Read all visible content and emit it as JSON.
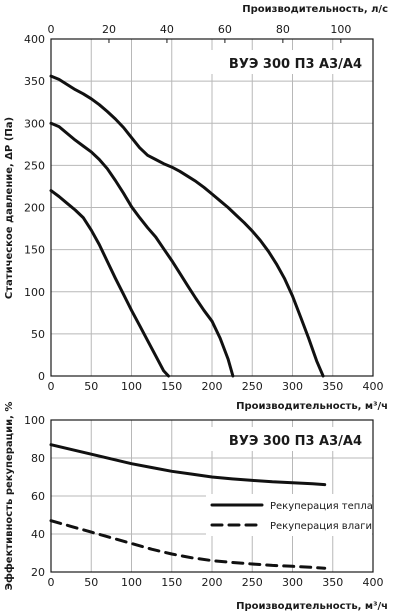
{
  "chart_data": [
    {
      "type": "line",
      "title": "ВУЭ 300 П3 А3/А4",
      "xlabel": "Производительность, м³/ч",
      "x2label": "Производительность, л/с",
      "ylabel": "Статическое давление, ΔP (Па)",
      "xlim": [
        0,
        400
      ],
      "x2lim": [
        0,
        111.1
      ],
      "ylim": [
        0,
        400
      ],
      "x_ticks": [
        "0",
        "50",
        "100",
        "150",
        "200",
        "250",
        "300",
        "350",
        "400"
      ],
      "x2_ticks": [
        "0",
        "20",
        "40",
        "60",
        "80",
        "100"
      ],
      "y_ticks": [
        "0",
        "50",
        "100",
        "150",
        "200",
        "250",
        "300",
        "350",
        "400"
      ],
      "grid": true,
      "series": [
        {
          "x": [
            0,
            10,
            20,
            30,
            40,
            50,
            60,
            70,
            80,
            90,
            100,
            110,
            120,
            125,
            130,
            140,
            147
          ],
          "y": [
            356,
            352,
            346,
            340,
            335,
            329,
            322,
            314,
            305,
            295,
            283,
            270,
            258,
            254,
            251,
            246,
            242
          ],
          "y_readout": "n/a"
        },
        {
          "x": [
            0,
            10,
            20,
            30,
            40,
            50,
            60,
            70,
            80,
            90,
            100,
            110,
            120,
            130,
            140,
            150,
            160,
            170,
            180,
            190,
            200,
            210,
            220,
            230,
            240,
            250,
            260,
            270,
            280,
            290,
            300,
            310,
            320,
            330,
            338
          ],
          "y": [
            356,
            352,
            346,
            340,
            335,
            329,
            322,
            314,
            305,
            295,
            283,
            271,
            262,
            257,
            252,
            248,
            243,
            237,
            231,
            224,
            216,
            208,
            200,
            191,
            182,
            172,
            161,
            148,
            133,
            116,
            95,
            70,
            45,
            18,
            0
          ]
        },
        {
          "x": [
            0,
            10,
            20,
            30,
            40,
            50,
            60,
            70,
            80,
            90,
            100,
            110,
            120,
            130,
            140,
            150,
            160,
            170,
            180,
            190,
            200,
            210,
            220,
            226
          ],
          "y": [
            300,
            296,
            288,
            280,
            273,
            266,
            257,
            246,
            232,
            217,
            201,
            188,
            176,
            165,
            151,
            137,
            122,
            107,
            92,
            78,
            65,
            45,
            20,
            0
          ]
        },
        {
          "x": [
            0,
            10,
            20,
            30,
            40,
            50,
            60,
            70,
            80,
            90,
            100,
            110,
            120,
            130,
            140,
            146
          ],
          "y": [
            220,
            213,
            205,
            197,
            188,
            173,
            156,
            136,
            116,
            97,
            78,
            60,
            42,
            24,
            6,
            0
          ]
        }
      ]
    },
    {
      "type": "line",
      "title": "ВУЭ 300 П3 А3/А4",
      "xlabel": "Производительность, м³/ч",
      "ylabel": "Эффективность рекуперации, %",
      "xlim": [
        0,
        400
      ],
      "ylim": [
        20,
        100
      ],
      "x_ticks": [
        "0",
        "50",
        "100",
        "150",
        "200",
        "250",
        "300",
        "350",
        "400"
      ],
      "y_ticks": [
        "20",
        "40",
        "60",
        "80",
        "100"
      ],
      "grid": true,
      "legend_position": "bottom-right",
      "series": [
        {
          "name": "Рекуперация тепла",
          "style": "solid",
          "x": [
            0,
            25,
            50,
            75,
            100,
            125,
            150,
            175,
            200,
            225,
            250,
            275,
            300,
            325,
            340
          ],
          "y": [
            87,
            84.5,
            82,
            79.5,
            77,
            75,
            73,
            71.5,
            70,
            69,
            68.2,
            67.5,
            67,
            66.4,
            66
          ]
        },
        {
          "name": "Рекуперация влаги",
          "style": "dashed",
          "x": [
            0,
            25,
            50,
            75,
            100,
            125,
            150,
            175,
            200,
            225,
            250,
            275,
            300,
            325,
            340
          ],
          "y": [
            47,
            44,
            41,
            38,
            35,
            32,
            29.5,
            27.5,
            26,
            25,
            24.2,
            23.5,
            23,
            22.4,
            22
          ]
        }
      ]
    }
  ]
}
